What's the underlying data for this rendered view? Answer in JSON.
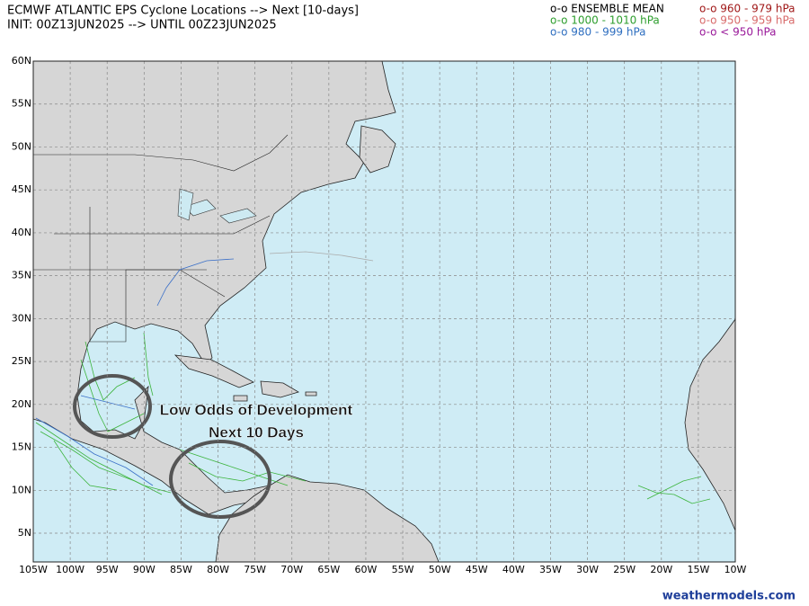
{
  "header": {
    "title": "ECMWF ATLANTIC EPS Cyclone Locations --> Next [10-days]",
    "subtitle": "INIT: 00Z13JUN2025 --> UNTIL 00Z23JUN2025"
  },
  "legend": [
    {
      "label": "o-o ENSEMBLE MEAN",
      "color": "#000000"
    },
    {
      "label": "o-o 1000 - 1010 hPa",
      "color": "#2e9e2e"
    },
    {
      "label": "o-o 980 - 999 hPa",
      "color": "#2f6fc0"
    },
    {
      "label": "o-o 960 - 979 hPa",
      "color": "#a01818"
    },
    {
      "label": "o-o 950 - 959 hPa",
      "color": "#d86a6a"
    },
    {
      "label": "o-o < 950 hPa",
      "color": "#9a1a9a"
    }
  ],
  "map": {
    "lonlim": [
      -105,
      -10
    ],
    "latlim": [
      1.65,
      60
    ],
    "lonticks": [
      {
        "value": -105,
        "label": "105W"
      },
      {
        "value": -100,
        "label": "100W"
      },
      {
        "value": -95,
        "label": "95W"
      },
      {
        "value": -90,
        "label": "90W"
      },
      {
        "value": -85,
        "label": "85W"
      },
      {
        "value": -80,
        "label": "80W"
      },
      {
        "value": -75,
        "label": "75W"
      },
      {
        "value": -70,
        "label": "70W"
      },
      {
        "value": -65,
        "label": "65W"
      },
      {
        "value": -60,
        "label": "60W"
      },
      {
        "value": -55,
        "label": "55W"
      },
      {
        "value": -50,
        "label": "50W"
      },
      {
        "value": -45,
        "label": "45W"
      },
      {
        "value": -40,
        "label": "40W"
      },
      {
        "value": -35,
        "label": "35W"
      },
      {
        "value": -30,
        "label": "30W"
      },
      {
        "value": -25,
        "label": "25W"
      },
      {
        "value": -20,
        "label": "20W"
      },
      {
        "value": -15,
        "label": "15W"
      },
      {
        "value": -10,
        "label": "10W"
      }
    ],
    "latticks": [
      {
        "value": 60,
        "label": "60N"
      },
      {
        "value": 55,
        "label": "55N"
      },
      {
        "value": 50,
        "label": "50N"
      },
      {
        "value": 45,
        "label": "45N"
      },
      {
        "value": 40,
        "label": "40N"
      },
      {
        "value": 35,
        "label": "35N"
      },
      {
        "value": 30,
        "label": "30N"
      },
      {
        "value": 25,
        "label": "25N"
      },
      {
        "value": 20,
        "label": "20N"
      },
      {
        "value": 15,
        "label": "15N"
      },
      {
        "value": 10,
        "label": "10N"
      },
      {
        "value": 5,
        "label": "5N"
      }
    ]
  },
  "annotation": {
    "lines": [
      "Low Odds of Development",
      "Next 10 Days"
    ]
  },
  "footer": {
    "source": "weathermodels.com"
  }
}
